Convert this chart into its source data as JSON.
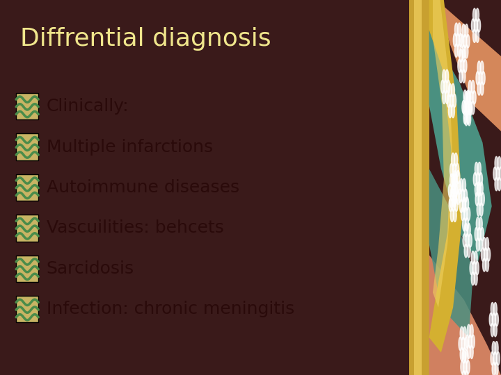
{
  "title": "Diffrential diagnosis",
  "title_color": "#F0E68C",
  "title_fontsize": 26,
  "bg_color": "#B8635A",
  "border_color": "#3A1A1A",
  "bullet_items": [
    "Clinically:",
    "Multiple infarctions",
    "Autoimmune diseases",
    "Vascuilities: behcets",
    "Sarcidosis",
    "Infection: chronic meningitis"
  ],
  "bullet_text_color": "#2A0A0A",
  "bullet_fontsize": 18,
  "bullet_icon_green": "#4A8C4A",
  "bullet_icon_tan": "#C8B464",
  "right_bg": "#C8B87A",
  "gold_color": "#D4B84A",
  "teal_color": "#4A9080",
  "orange_color": "#D4875A",
  "salmon_color": "#C8785A",
  "figsize": [
    7.2,
    5.4
  ],
  "dpi": 100
}
